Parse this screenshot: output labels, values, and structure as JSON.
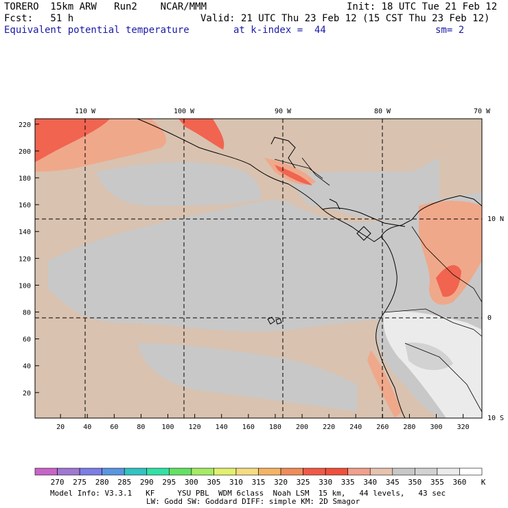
{
  "header": {
    "model": "TORERO  15km ARW   Run2    NCAR/MMM",
    "init": "Init: 18 UTC Tue 21 Feb 12",
    "fcst": "Fcst:   51 h",
    "valid": "Valid: 21 UTC Thu 23 Feb 12 (15 CST Thu 23 Feb 12)",
    "field": "Equivalent potential temperature",
    "level": "at k-index =  44",
    "smooth": "sm= 2"
  },
  "map": {
    "x_ticks": [
      20,
      40,
      60,
      80,
      100,
      120,
      140,
      160,
      180,
      200,
      220,
      240,
      260,
      280,
      300,
      320
    ],
    "y_ticks": [
      20,
      40,
      60,
      80,
      100,
      120,
      140,
      160,
      180,
      200,
      220
    ],
    "lon_labels": [
      "110 W",
      "100 W",
      "90 W",
      "80 W",
      "70 W"
    ],
    "lat_labels": [
      "10 N",
      "0",
      "10 S"
    ],
    "colors": {
      "ocean_low": "#d9c2b0",
      "gray_band": "#c8c8c8",
      "pink_band": "#f0a88a",
      "red_band": "#f06450",
      "white_band": "#f2f2f2"
    }
  },
  "colorbar": {
    "colors": [
      "#c864c8",
      "#a078d2",
      "#7d7de6",
      "#5a96e1",
      "#32c3c3",
      "#32e1a5",
      "#64e164",
      "#a5eb64",
      "#e1f06e",
      "#f5dc82",
      "#f5b464",
      "#f08c5a",
      "#f05a46",
      "#f0503c",
      "#f0a08c",
      "#e6c3af",
      "#c8c8c8",
      "#d2d2d2",
      "#ebebeb",
      "#ffffff"
    ],
    "labels": [
      "270",
      "275",
      "280",
      "285",
      "290",
      "295",
      "300",
      "305",
      "310",
      "315",
      "320",
      "325",
      "330",
      "335",
      "340",
      "345",
      "350",
      "355",
      "360"
    ],
    "unit": "K"
  },
  "footer": {
    "line1": "Model Info: V3.3.1   KF     YSU PBL  WDM 6class  Noah LSM  15 km,   44 levels,   43 sec",
    "line2": "LW: Godd SW: Goddard DIFF: simple KM: 2D Smagor"
  }
}
